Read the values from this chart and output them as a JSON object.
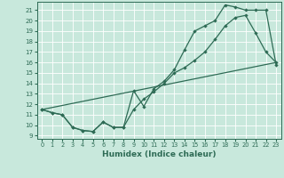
{
  "xlabel": "Humidex (Indice chaleur)",
  "xlim": [
    -0.5,
    23.5
  ],
  "ylim": [
    8.7,
    21.8
  ],
  "yticks": [
    9,
    10,
    11,
    12,
    13,
    14,
    15,
    16,
    17,
    18,
    19,
    20,
    21
  ],
  "xticks": [
    0,
    1,
    2,
    3,
    4,
    5,
    6,
    7,
    8,
    9,
    10,
    11,
    12,
    13,
    14,
    15,
    16,
    17,
    18,
    19,
    20,
    21,
    22,
    23
  ],
  "bg_color": "#c8e8dc",
  "line_color": "#2e6b55",
  "line1_x": [
    0,
    1,
    2,
    3,
    4,
    5,
    6,
    7,
    8,
    9,
    10,
    11,
    12,
    13,
    14,
    15,
    16,
    17,
    18,
    19,
    20,
    21,
    22,
    23
  ],
  "line1_y": [
    11.5,
    11.2,
    11.0,
    9.8,
    9.5,
    9.4,
    10.3,
    9.8,
    9.8,
    13.3,
    11.8,
    13.5,
    14.2,
    15.3,
    17.2,
    19.0,
    19.5,
    20.0,
    21.5,
    21.3,
    21.0,
    21.0,
    21.0,
    15.8
  ],
  "line2_x": [
    0,
    1,
    2,
    3,
    4,
    5,
    6,
    7,
    8,
    9,
    10,
    11,
    12,
    13,
    14,
    15,
    16,
    17,
    18,
    19,
    20,
    21,
    22,
    23
  ],
  "line2_y": [
    11.5,
    11.2,
    11.0,
    9.8,
    9.5,
    9.4,
    10.3,
    9.8,
    9.8,
    11.5,
    12.5,
    13.2,
    14.0,
    15.0,
    15.5,
    16.2,
    17.0,
    18.2,
    19.5,
    20.3,
    20.5,
    18.8,
    17.0,
    16.0
  ],
  "line3_x": [
    0,
    23
  ],
  "line3_y": [
    11.5,
    16.0
  ]
}
